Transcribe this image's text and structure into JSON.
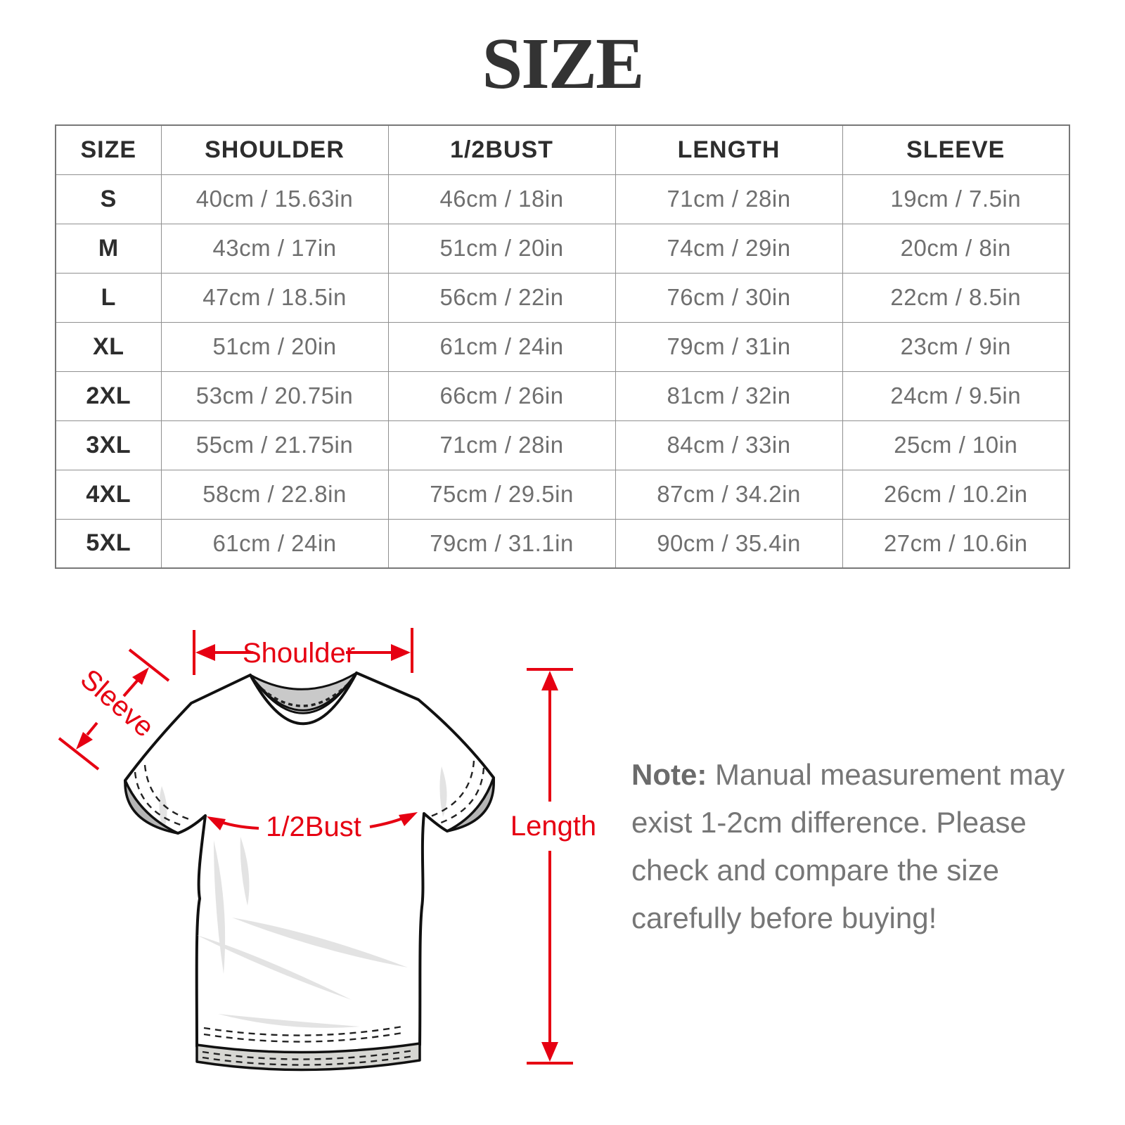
{
  "title": "SIZE",
  "colors": {
    "accent_red": "#e60012",
    "header_text": "#2d2d2d",
    "cell_text": "#6f6f6f",
    "table_border": "#909090",
    "note_text": "#767676"
  },
  "chart_data": {
    "type": "table",
    "title": "SIZE",
    "columns": [
      "SIZE",
      "SHOULDER",
      "1/2BUST",
      "LENGTH",
      "SLEEVE"
    ],
    "rows": [
      [
        "S",
        "40cm / 15.63in",
        "46cm / 18in",
        "71cm / 28in",
        "19cm / 7.5in"
      ],
      [
        "M",
        "43cm / 17in",
        "51cm / 20in",
        "74cm / 29in",
        "20cm / 8in"
      ],
      [
        "L",
        "47cm / 18.5in",
        "56cm / 22in",
        "76cm / 30in",
        "22cm / 8.5in"
      ],
      [
        "XL",
        "51cm / 20in",
        "61cm / 24in",
        "79cm / 31in",
        "23cm / 9in"
      ],
      [
        "2XL",
        "53cm / 20.75in",
        "66cm / 26in",
        "81cm / 32in",
        "24cm / 9.5in"
      ],
      [
        "3XL",
        "55cm / 21.75in",
        "71cm / 28in",
        "84cm / 33in",
        "25cm / 10in"
      ],
      [
        "4XL",
        "58cm / 22.8in",
        "75cm / 29.5in",
        "87cm / 34.2in",
        "26cm / 10.2in"
      ],
      [
        "5XL",
        "61cm / 24in",
        "79cm / 31.1in",
        "90cm / 35.4in",
        "27cm / 10.6in"
      ]
    ]
  },
  "diagram": {
    "labels": {
      "shoulder": "Shoulder",
      "sleeve": "Sleeve",
      "half_bust": "1/2Bust",
      "length": "Length"
    }
  },
  "note": {
    "label": "Note:",
    "lines": [
      "Manual measurement may",
      "exist 1-2cm difference. Please",
      "check and compare the size",
      "carefully before buying!"
    ]
  }
}
